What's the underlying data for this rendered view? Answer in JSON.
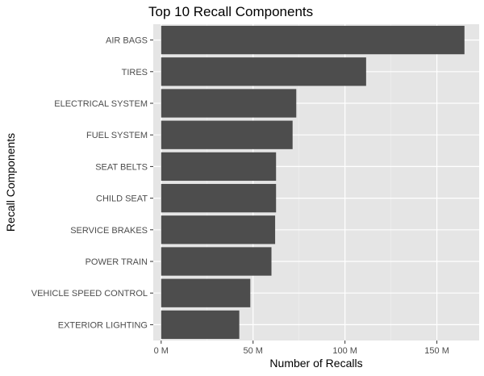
{
  "chart_data": {
    "type": "bar",
    "orientation": "horizontal",
    "title": "Top 10 Recall Components",
    "xlabel": "Number of Recalls",
    "ylabel": "Recall Components",
    "categories": [
      "AIR BAGS",
      "TIRES",
      "ELECTRICAL SYSTEM",
      "FUEL SYSTEM",
      "SEAT BELTS",
      "CHILD SEAT",
      "SERVICE BRAKES",
      "POWER TRAIN",
      "VEHICLE SPEED CONTROL",
      "EXTERIOR LIGHTING"
    ],
    "values": [
      165000000,
      111500000,
      73500000,
      71500000,
      62500000,
      62500000,
      62000000,
      60000000,
      48500000,
      42500000
    ],
    "xlim": [
      -4300000,
      173000000
    ],
    "x_ticks": [
      0,
      50000000,
      100000000,
      150000000
    ],
    "x_tick_labels": [
      "0 M",
      "50 M",
      "100 M",
      "150 M"
    ],
    "grid": true,
    "legend": "none",
    "colors": {
      "bar": "#4d4d4d",
      "panel_background": "#e5e5e5",
      "grid_major": "#ffffff",
      "grid_minor": "#f0f0f0"
    }
  }
}
